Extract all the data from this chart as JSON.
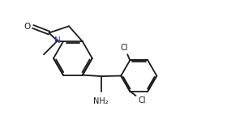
{
  "bg_color": "#ffffff",
  "line_color": "#1a1a1a",
  "line_width": 1.3,
  "N_color": "#3333bb",
  "figsize": [
    2.96,
    1.53
  ],
  "dpi": 100,
  "xlim": [
    0,
    9.5
  ],
  "ylim": [
    0,
    5.0
  ]
}
